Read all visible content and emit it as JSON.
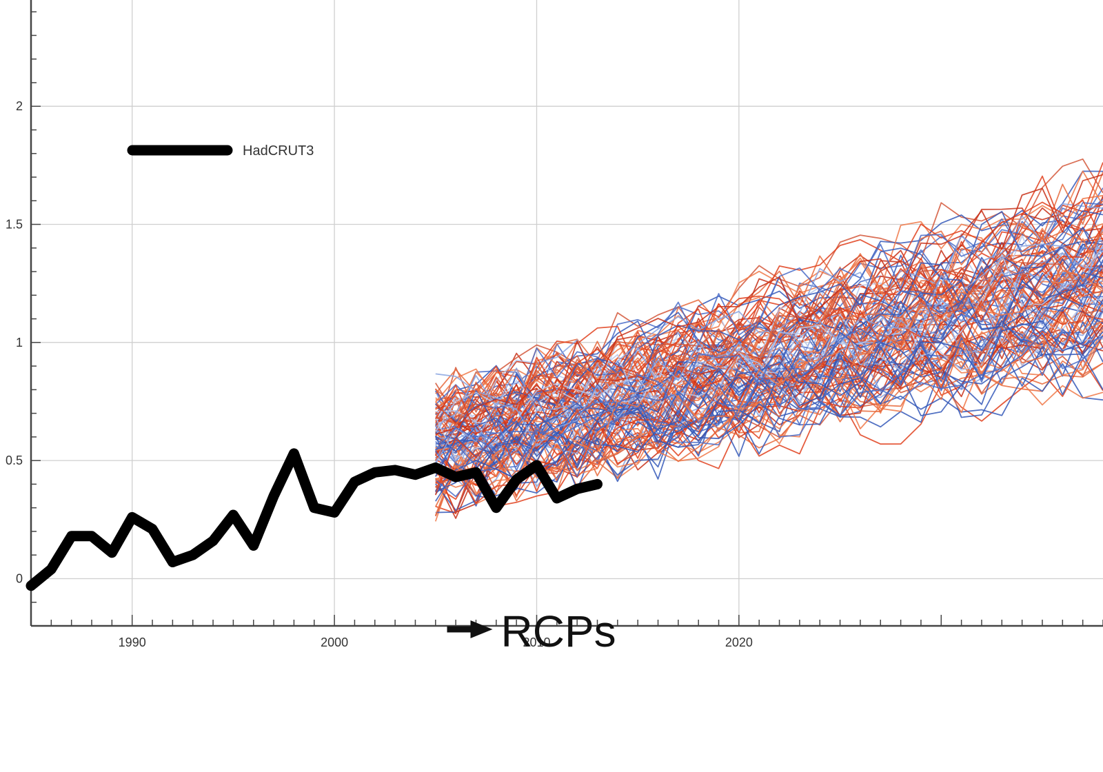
{
  "chart_data": {
    "type": "line",
    "title": "",
    "xlabel": "",
    "ylabel": "",
    "xlim": [
      1985,
      2038
    ],
    "ylim": [
      -0.2,
      2.45
    ],
    "grid": true,
    "x_ticks": [
      {
        "value": 1990,
        "label": "1990"
      },
      {
        "value": 2000,
        "label": "2000"
      },
      {
        "value": 2010,
        "label": "2010"
      },
      {
        "value": 2020,
        "label": "2020"
      }
    ],
    "y_ticks": [
      {
        "value": 0,
        "label": "0"
      },
      {
        "value": 0.5,
        "label": "0.5"
      },
      {
        "value": 1,
        "label": "1"
      },
      {
        "value": 1.5,
        "label": "1.5"
      },
      {
        "value": 2,
        "label": "2"
      }
    ],
    "legend": {
      "position": "top-left",
      "entries": [
        {
          "name": "HadCRUT3",
          "color": "#000000"
        }
      ]
    },
    "series": [
      {
        "name": "HadCRUT3",
        "color": "#000000",
        "x": [
          1985,
          1986,
          1987,
          1988,
          1989,
          1990,
          1991,
          1992,
          1993,
          1994,
          1995,
          1996,
          1997,
          1998,
          1999,
          2000,
          2001,
          2002,
          2003,
          2004,
          2005,
          2006,
          2007,
          2008,
          2009,
          2010,
          2011,
          2012,
          2013
        ],
        "y": [
          -0.03,
          0.04,
          0.18,
          0.18,
          0.11,
          0.26,
          0.21,
          0.07,
          0.1,
          0.16,
          0.27,
          0.14,
          0.35,
          0.53,
          0.3,
          0.28,
          0.41,
          0.45,
          0.46,
          0.44,
          0.47,
          0.43,
          0.45,
          0.3,
          0.42,
          0.48,
          0.34,
          0.38,
          0.4
        ]
      }
    ],
    "ensemble": {
      "name": "RCPs",
      "members": 120,
      "x_start": 2005,
      "x_end": 2038,
      "start_range": [
        0.35,
        0.75
      ],
      "trend_per_year": 0.021,
      "colors": [
        "#e0401c",
        "#f07848",
        "#c83018",
        "#4a6cc8",
        "#8aa4e0",
        "#b8c8ec",
        "#e86a3c",
        "#3458b8",
        "#d4573a"
      ]
    },
    "annotations": [
      {
        "text": "RCPs",
        "x": 2010,
        "y": -0.2,
        "arrow": true
      }
    ]
  }
}
